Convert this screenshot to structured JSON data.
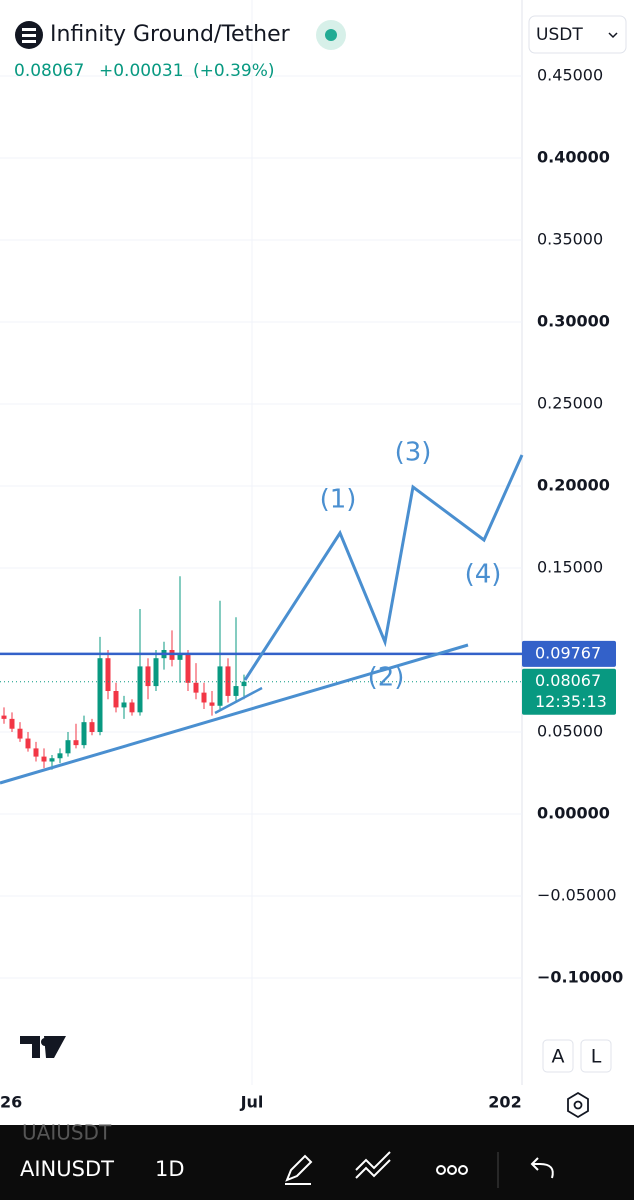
{
  "header": {
    "symbol": "Infinity Ground/Tether",
    "last": "0.08067",
    "change": "+0.00031",
    "change_pct": "(+0.39%)",
    "currency": "USDT"
  },
  "chart_data": {
    "type": "candlestick",
    "open": [
      0.06,
      0.058,
      0.052,
      0.046,
      0.04,
      0.035,
      0.032,
      0.034,
      0.037,
      0.045,
      0.042,
      0.056,
      0.05,
      0.095,
      0.075,
      0.065,
      0.068,
      0.062,
      0.09,
      0.078,
      0.095,
      0.1,
      0.094,
      0.098,
      0.08,
      0.074,
      0.068,
      0.066,
      0.09,
      0.072,
      0.078
    ],
    "high": [
      0.065,
      0.062,
      0.056,
      0.05,
      0.044,
      0.04,
      0.036,
      0.04,
      0.05,
      0.055,
      0.06,
      0.058,
      0.108,
      0.1,
      0.08,
      0.072,
      0.07,
      0.125,
      0.095,
      0.1,
      0.105,
      0.112,
      0.145,
      0.1,
      0.092,
      0.08,
      0.075,
      0.13,
      0.095,
      0.12,
      0.085
    ],
    "low": [
      0.055,
      0.05,
      0.044,
      0.038,
      0.032,
      0.028,
      0.027,
      0.031,
      0.035,
      0.04,
      0.04,
      0.048,
      0.048,
      0.07,
      0.062,
      0.058,
      0.06,
      0.06,
      0.07,
      0.075,
      0.088,
      0.09,
      0.08,
      0.075,
      0.07,
      0.064,
      0.06,
      0.064,
      0.068,
      0.068,
      0.07
    ],
    "close": [
      0.058,
      0.052,
      0.046,
      0.04,
      0.035,
      0.032,
      0.034,
      0.037,
      0.045,
      0.042,
      0.056,
      0.05,
      0.095,
      0.075,
      0.065,
      0.068,
      0.062,
      0.09,
      0.078,
      0.095,
      0.1,
      0.094,
      0.098,
      0.08,
      0.074,
      0.068,
      0.066,
      0.09,
      0.072,
      0.078,
      0.08067
    ],
    "ylim": [
      -0.16,
      0.5
    ],
    "yticks": [
      {
        "value": 0.45,
        "label": "0.45000"
      },
      {
        "value": 0.4,
        "label": "0.40000"
      },
      {
        "value": 0.35,
        "label": "0.35000"
      },
      {
        "value": 0.3,
        "label": "0.30000"
      },
      {
        "value": 0.25,
        "label": "0.25000"
      },
      {
        "value": 0.2,
        "label": "0.20000"
      },
      {
        "value": 0.15,
        "label": "0.15000"
      },
      {
        "value": 0.05,
        "label": "0.05000"
      },
      {
        "value": 0,
        "label": "0.00000"
      },
      {
        "value": -0.05,
        "label": "−0.05000"
      },
      {
        "value": -0.1,
        "label": "−0.10000"
      }
    ],
    "x_labels": [
      "26",
      "Jul",
      "202"
    ],
    "up_color": "#089981",
    "down_color": "#f23645",
    "annotations": [
      "(1)",
      "(2)",
      "(3)",
      "(4)"
    ],
    "level": {
      "value": 0.09767,
      "label": "0.09767"
    },
    "last_price": {
      "value": 0.08067,
      "label": "0.08067"
    },
    "countdown": "12:35:13"
  },
  "toolbar": {
    "scale_buttons": [
      "A",
      "L"
    ],
    "symbols": [
      "UAIUSDT",
      "AINUSDT"
    ],
    "interval": "1D"
  }
}
